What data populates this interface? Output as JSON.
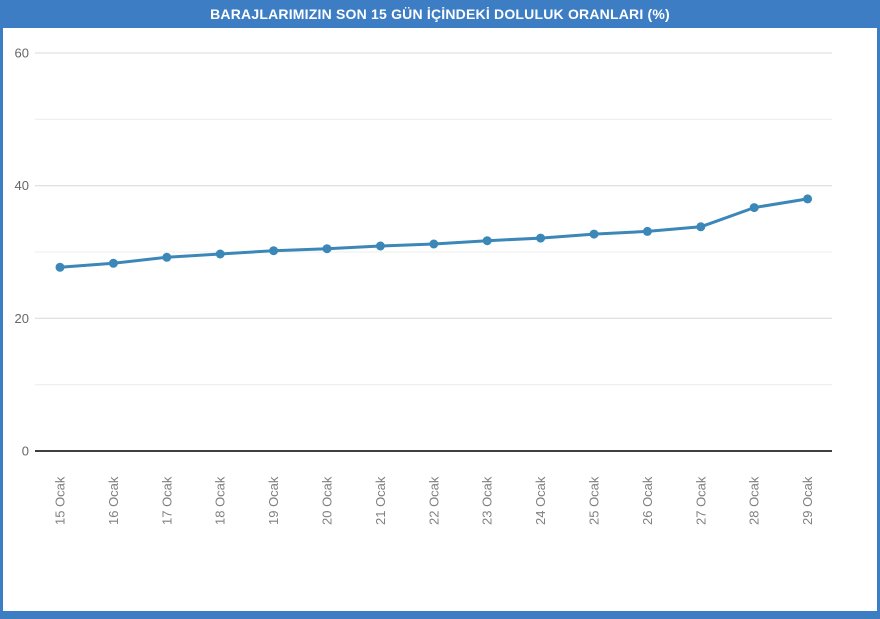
{
  "frame": {
    "color": "#3c7dc4",
    "title_text_color": "#ffffff"
  },
  "chart_data": {
    "type": "line",
    "title": "BARAJLARIMIZIN SON 15 GÜN İÇİNDEKİ DOLULUK ORANLARI (%)",
    "categories": [
      "15 Ocak",
      "16 Ocak",
      "17 Ocak",
      "18 Ocak",
      "19 Ocak",
      "20 Ocak",
      "21 Ocak",
      "22 Ocak",
      "23 Ocak",
      "24 Ocak",
      "25 Ocak",
      "26 Ocak",
      "27 Ocak",
      "28 Ocak",
      "29 Ocak"
    ],
    "values": [
      27.7,
      28.3,
      29.2,
      29.7,
      30.2,
      30.5,
      30.9,
      31.2,
      31.7,
      32.1,
      32.7,
      33.1,
      33.8,
      36.7,
      38.0
    ],
    "xlabel": "",
    "ylabel": "",
    "ylim": [
      0,
      60
    ],
    "yticks": [
      0,
      20,
      40,
      60
    ],
    "minor_gridlines": [
      10,
      30,
      50
    ],
    "grid": true,
    "legend": "none",
    "x_label_rotation": -90,
    "line_color": "#3b87b8",
    "marker_color": "#3b87b8",
    "major_grid_color": "#d8d8d8",
    "minor_grid_color": "#ececec",
    "axis_line_color": "#404040",
    "ytick_color": "#666666",
    "xlabel_color": "#808080"
  }
}
